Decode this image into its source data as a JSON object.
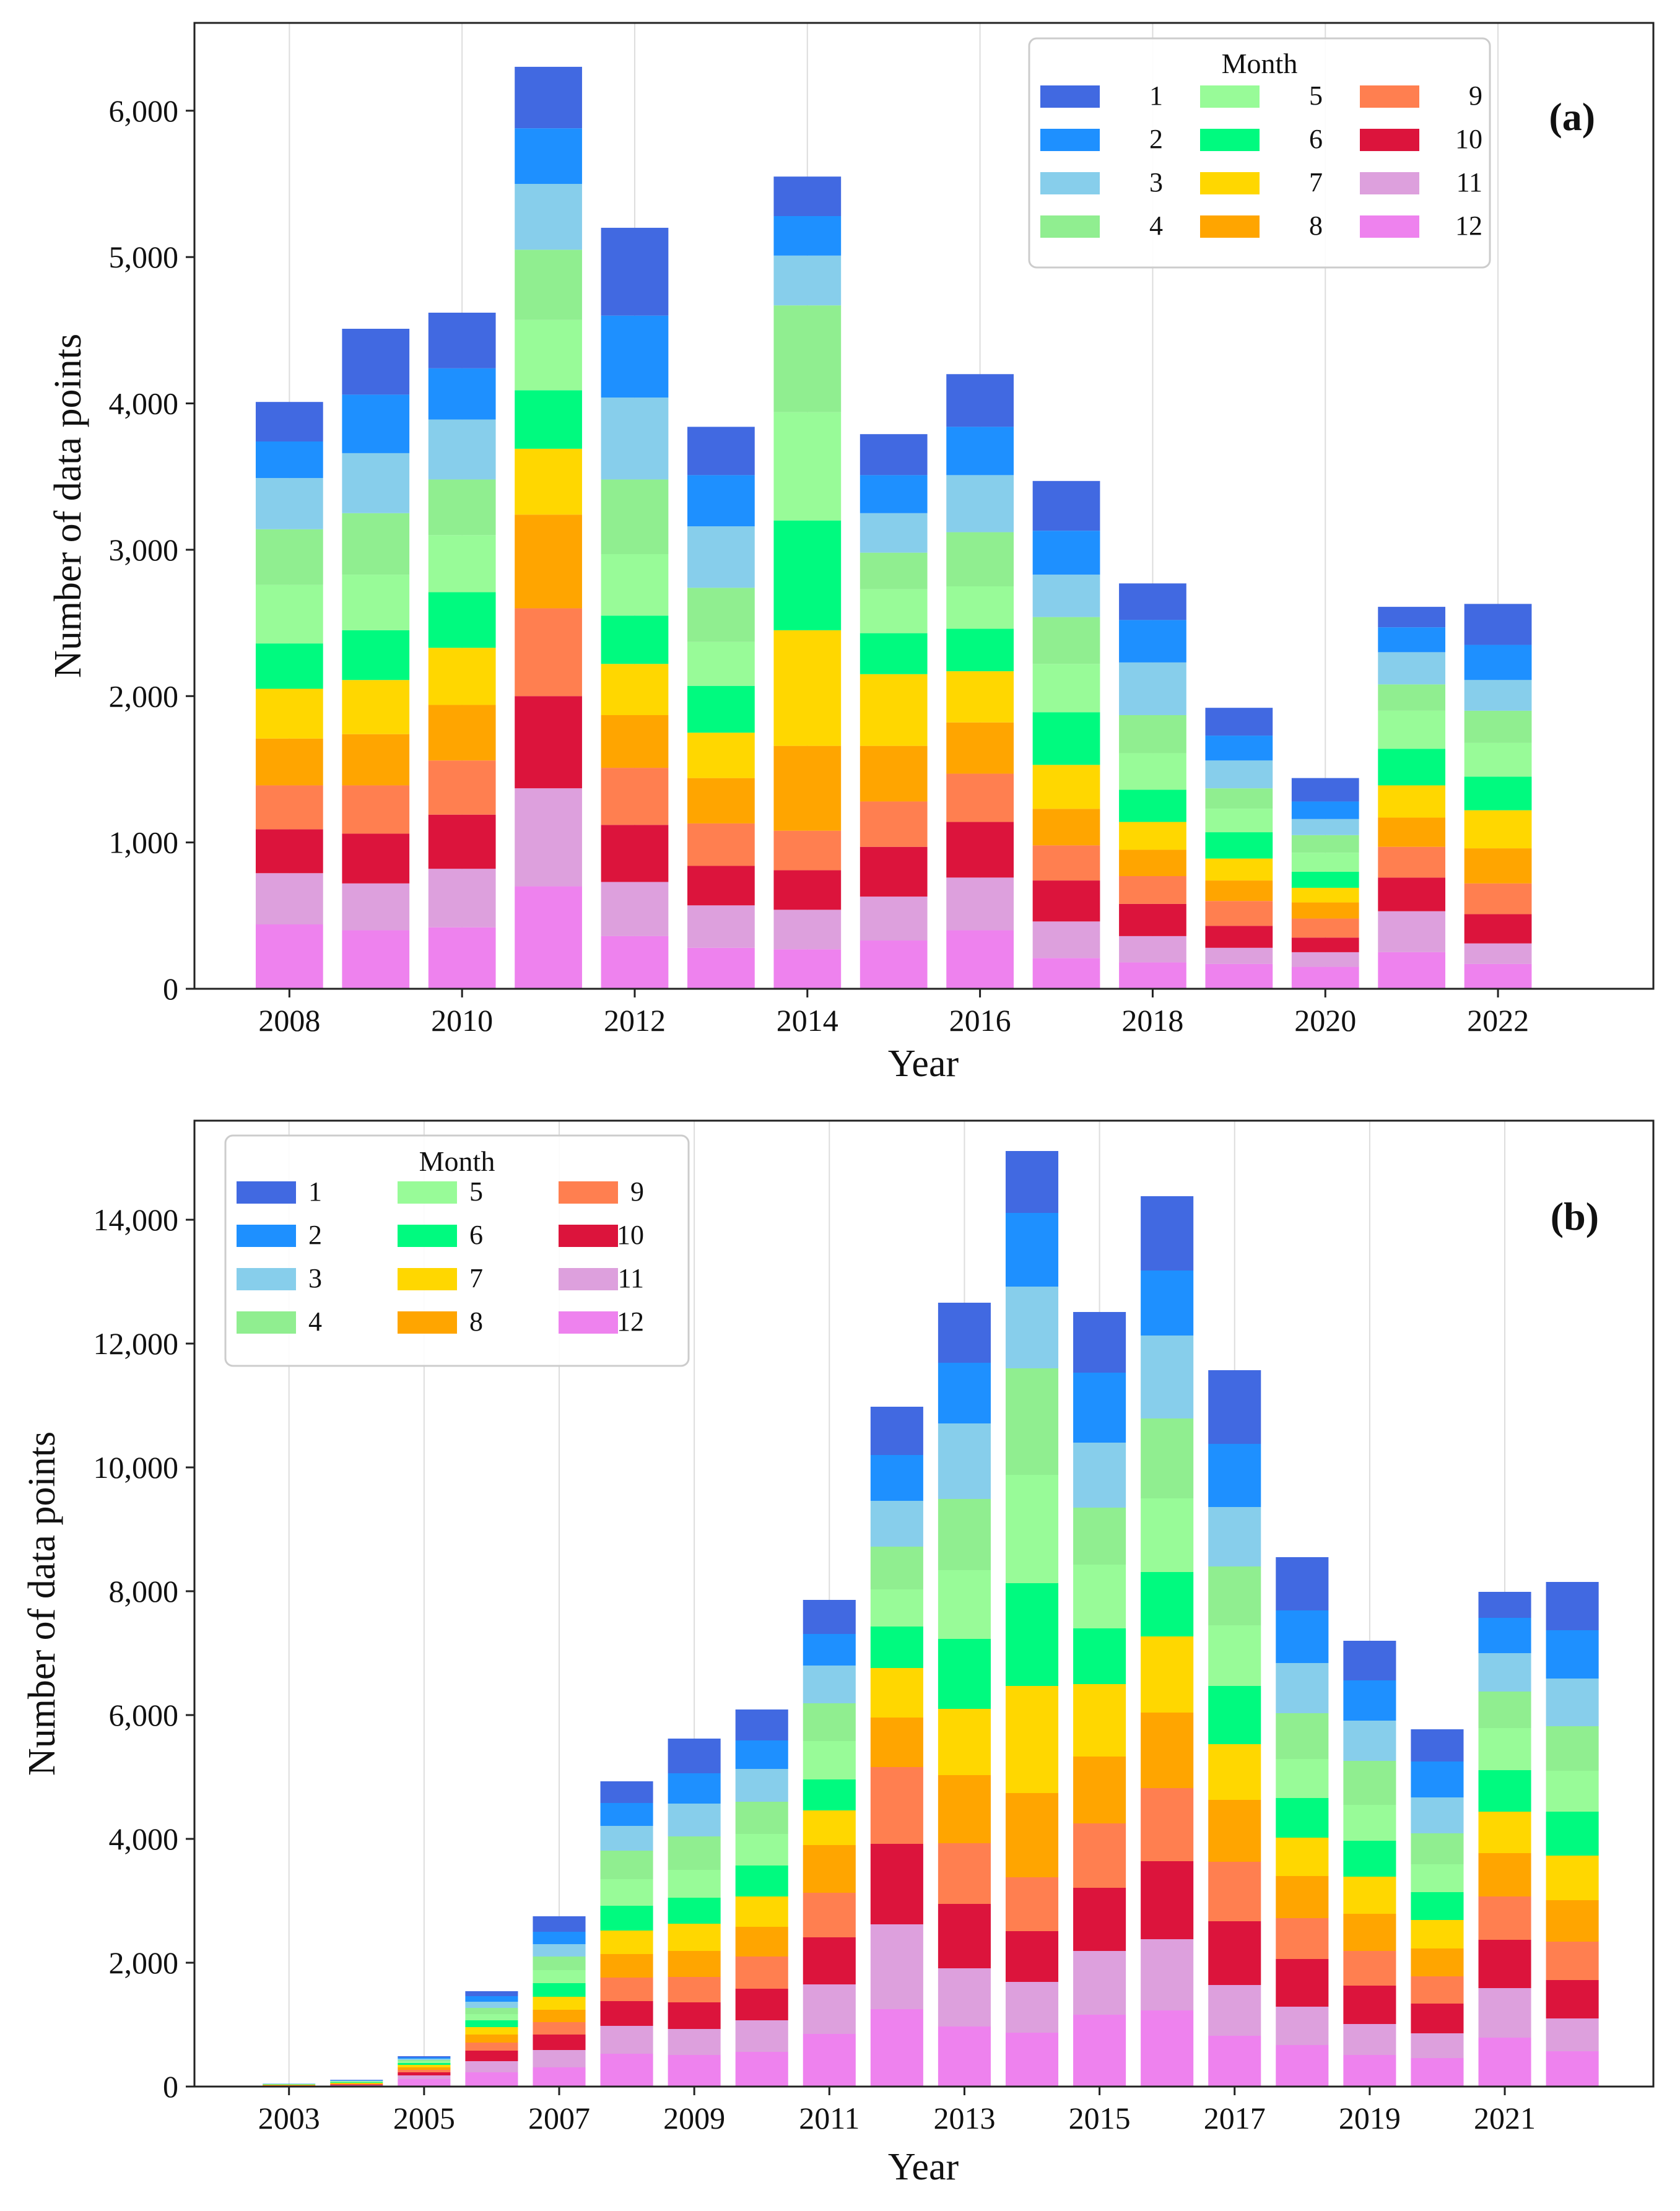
{
  "colors": {
    "1": "#4169e1",
    "2": "#1e90ff",
    "3": "#87ceeb",
    "4": "#90ee90",
    "5": "#98fb98",
    "6": "#00fa7f",
    "7": "#ffd700",
    "8": "#ffa500",
    "9": "#ff7f50",
    "10": "#dc143c",
    "11": "#dda0dd",
    "12": "#ee82ee",
    "grid": "#dddddd",
    "axis": "#222222"
  },
  "chart_data": [
    {
      "type": "bar",
      "stacked": true,
      "panel_label": "(a)",
      "xlabel": "Year",
      "ylabel": "Number of data points",
      "ylim": [
        0,
        6600
      ],
      "xlim": [
        2006.9,
        2023.8
      ],
      "yticks": [
        0,
        1000,
        2000,
        3000,
        4000,
        5000,
        6000
      ],
      "ytick_labels": [
        "0",
        "1,000",
        "2,000",
        "3,000",
        "4,000",
        "5,000",
        "6,000"
      ],
      "xticks": [
        2008,
        2010,
        2012,
        2014,
        2016,
        2018,
        2020,
        2022
      ],
      "xtick_labels": [
        "2008",
        "2010",
        "2012",
        "2014",
        "2016",
        "2018",
        "2020",
        "2022"
      ],
      "grid": "vertical",
      "legend": {
        "title": "Month",
        "location": "top-right",
        "columns": 3,
        "labels": [
          "1",
          "2",
          "3",
          "4",
          "5",
          "6",
          "7",
          "8",
          "9",
          "10",
          "11",
          "12"
        ]
      },
      "years": [
        2008,
        2009,
        2010,
        2011,
        2012,
        2013,
        2014,
        2015,
        2016,
        2017,
        2018,
        2019,
        2020,
        2021,
        2022
      ],
      "series": [
        {
          "name": "12",
          "values": [
            440,
            400,
            420,
            700,
            360,
            280,
            270,
            330,
            400,
            210,
            180,
            170,
            150,
            250,
            170
          ]
        },
        {
          "name": "11",
          "values": [
            350,
            320,
            400,
            670,
            370,
            290,
            270,
            300,
            360,
            250,
            180,
            110,
            100,
            280,
            140
          ]
        },
        {
          "name": "10",
          "values": [
            300,
            340,
            370,
            630,
            390,
            270,
            270,
            340,
            380,
            280,
            220,
            150,
            100,
            230,
            200
          ]
        },
        {
          "name": "9",
          "values": [
            300,
            330,
            370,
            600,
            390,
            290,
            270,
            310,
            330,
            240,
            190,
            170,
            130,
            210,
            210
          ]
        },
        {
          "name": "8",
          "values": [
            320,
            350,
            380,
            640,
            360,
            310,
            580,
            380,
            350,
            250,
            180,
            140,
            110,
            200,
            240
          ]
        },
        {
          "name": "7",
          "values": [
            340,
            370,
            390,
            450,
            350,
            310,
            790,
            490,
            350,
            300,
            190,
            150,
            100,
            220,
            260
          ]
        },
        {
          "name": "6",
          "values": [
            310,
            340,
            380,
            400,
            330,
            320,
            750,
            280,
            290,
            360,
            220,
            180,
            110,
            250,
            230
          ]
        },
        {
          "name": "5",
          "values": [
            400,
            380,
            390,
            480,
            420,
            300,
            740,
            300,
            290,
            330,
            250,
            160,
            130,
            260,
            230
          ]
        },
        {
          "name": "4",
          "values": [
            380,
            420,
            380,
            480,
            510,
            370,
            730,
            250,
            370,
            320,
            260,
            140,
            120,
            180,
            220
          ]
        },
        {
          "name": "3",
          "values": [
            350,
            410,
            410,
            450,
            560,
            420,
            340,
            270,
            390,
            290,
            360,
            190,
            110,
            220,
            210
          ]
        },
        {
          "name": "2",
          "values": [
            250,
            400,
            350,
            380,
            560,
            350,
            270,
            260,
            330,
            300,
            290,
            170,
            120,
            170,
            240
          ]
        },
        {
          "name": "1",
          "values": [
            270,
            450,
            380,
            420,
            600,
            330,
            270,
            280,
            360,
            340,
            250,
            190,
            160,
            140,
            280
          ]
        }
      ]
    },
    {
      "type": "bar",
      "stacked": true,
      "panel_label": "(b)",
      "xlabel": "Year",
      "ylabel": "Number of data points",
      "ylim": [
        0,
        15600
      ],
      "xlim": [
        2001.6,
        2023.2
      ],
      "yticks": [
        0,
        2000,
        4000,
        6000,
        8000,
        10000,
        12000,
        14000
      ],
      "ytick_labels": [
        "0",
        "2,000",
        "4,000",
        "6,000",
        "8,000",
        "10,000",
        "12,000",
        "14,000"
      ],
      "xticks": [
        2003,
        2005,
        2007,
        2009,
        2011,
        2013,
        2015,
        2017,
        2019,
        2021
      ],
      "xtick_labels": [
        "2003",
        "2005",
        "2007",
        "2009",
        "2011",
        "2013",
        "2015",
        "2017",
        "2019",
        "2021"
      ],
      "grid": "vertical",
      "legend": {
        "title": "Month",
        "location": "top-left",
        "columns": 3,
        "labels": [
          "1",
          "2",
          "3",
          "4",
          "5",
          "6",
          "7",
          "8",
          "9",
          "10",
          "11",
          "12"
        ]
      },
      "years": [
        2003,
        2004,
        2005,
        2006,
        2007,
        2008,
        2009,
        2010,
        2011,
        2012,
        2013,
        2014,
        2015,
        2016,
        2017,
        2018,
        2019,
        2020,
        2021,
        2022
      ],
      "series": [
        {
          "name": "12",
          "values": [
            5,
            10,
            120,
            230,
            310,
            530,
            510,
            560,
            850,
            1250,
            970,
            870,
            1160,
            1230,
            820,
            670,
            510,
            460,
            790,
            570
          ]
        },
        {
          "name": "11",
          "values": [
            5,
            10,
            60,
            180,
            280,
            450,
            420,
            510,
            800,
            1370,
            940,
            820,
            1030,
            1150,
            820,
            620,
            500,
            400,
            800,
            530
          ]
        },
        {
          "name": "10",
          "values": [
            5,
            10,
            50,
            170,
            250,
            400,
            430,
            510,
            760,
            1300,
            1040,
            820,
            1020,
            1260,
            1030,
            770,
            620,
            480,
            780,
            620
          ]
        },
        {
          "name": "9",
          "values": [
            5,
            10,
            40,
            130,
            200,
            380,
            410,
            520,
            720,
            1240,
            980,
            870,
            1040,
            1180,
            960,
            660,
            560,
            440,
            700,
            620
          ]
        },
        {
          "name": "8",
          "values": [
            5,
            10,
            40,
            130,
            200,
            380,
            420,
            480,
            770,
            800,
            1100,
            1360,
            1080,
            1220,
            1000,
            680,
            600,
            450,
            700,
            670
          ]
        },
        {
          "name": "7",
          "values": [
            5,
            10,
            40,
            120,
            210,
            380,
            440,
            490,
            560,
            800,
            1070,
            1730,
            1170,
            1230,
            900,
            620,
            600,
            460,
            670,
            720
          ]
        },
        {
          "name": "6",
          "values": [
            5,
            10,
            30,
            110,
            220,
            400,
            420,
            500,
            500,
            670,
            1130,
            1660,
            900,
            1040,
            940,
            640,
            580,
            450,
            670,
            710
          ]
        },
        {
          "name": "5",
          "values": [
            3,
            10,
            30,
            100,
            210,
            430,
            450,
            510,
            620,
            600,
            1110,
            1750,
            1030,
            1190,
            980,
            630,
            580,
            450,
            680,
            660
          ]
        },
        {
          "name": "4",
          "values": [
            3,
            8,
            20,
            100,
            220,
            460,
            540,
            520,
            610,
            690,
            1150,
            1720,
            920,
            1290,
            950,
            740,
            710,
            500,
            590,
            720
          ]
        },
        {
          "name": "3",
          "values": [
            2,
            7,
            20,
            100,
            200,
            400,
            530,
            530,
            610,
            740,
            1220,
            1320,
            1050,
            1340,
            960,
            810,
            650,
            580,
            620,
            770
          ]
        },
        {
          "name": "2",
          "values": [
            2,
            8,
            20,
            90,
            200,
            370,
            490,
            460,
            510,
            740,
            980,
            1190,
            1130,
            1050,
            1020,
            850,
            650,
            580,
            570,
            780
          ]
        },
        {
          "name": "1",
          "values": [
            2,
            7,
            20,
            80,
            250,
            350,
            560,
            500,
            550,
            780,
            970,
            1000,
            980,
            1200,
            1190,
            860,
            640,
            520,
            420,
            780
          ]
        }
      ]
    }
  ]
}
